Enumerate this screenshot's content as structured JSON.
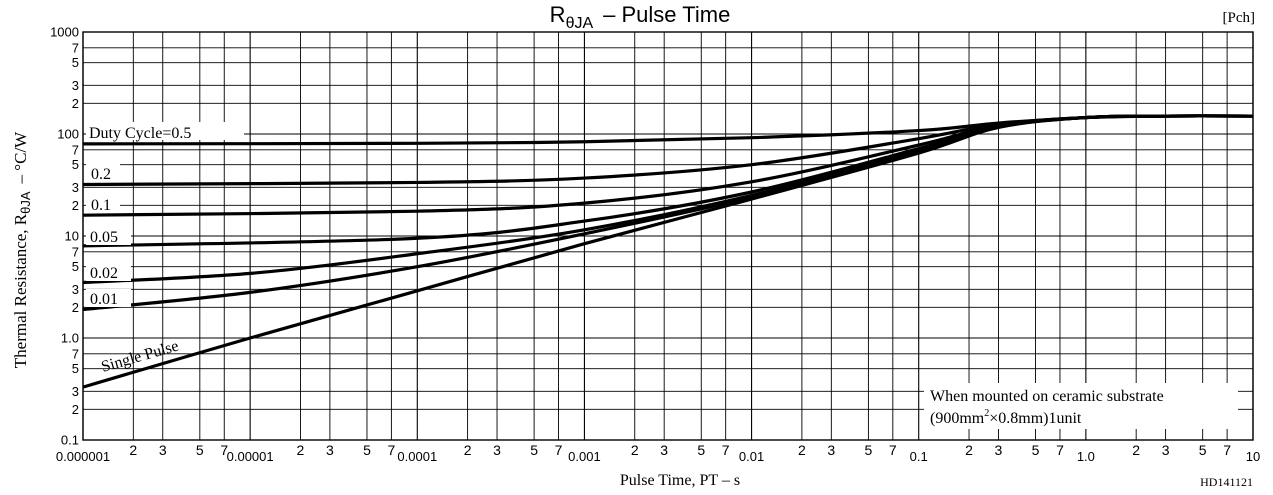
{
  "chart_data": {
    "type": "line",
    "title_main": "R",
    "title_sub": "θJA",
    "title_rest": "– Pulse Time",
    "tag": "[Pch]",
    "xlabel": "Pulse Time, PT – s",
    "ylabel_prefix": "Thermal Resistance, R",
    "ylabel_sub": "θJA",
    "ylabel_suffix": "– °C/W",
    "x_scale": "log",
    "y_scale": "log",
    "xlim": [
      1e-06,
      10
    ],
    "ylim": [
      0.1,
      1000
    ],
    "grid": true,
    "x_tick_labels": [
      {
        "v": 1e-06,
        "t": "0.000001"
      },
      {
        "v": 2e-06,
        "t": "2"
      },
      {
        "v": 3e-06,
        "t": "3"
      },
      {
        "v": 5e-06,
        "t": "5"
      },
      {
        "v": 7e-06,
        "t": "7"
      },
      {
        "v": 1e-05,
        "t": "0.00001"
      },
      {
        "v": 2e-05,
        "t": "2"
      },
      {
        "v": 3e-05,
        "t": "3"
      },
      {
        "v": 5e-05,
        "t": "5"
      },
      {
        "v": 7e-05,
        "t": "7"
      },
      {
        "v": 0.0001,
        "t": "0.0001"
      },
      {
        "v": 0.0002,
        "t": "2"
      },
      {
        "v": 0.0003,
        "t": "3"
      },
      {
        "v": 0.0005,
        "t": "5"
      },
      {
        "v": 0.0007,
        "t": "7"
      },
      {
        "v": 0.001,
        "t": "0.001"
      },
      {
        "v": 0.002,
        "t": "2"
      },
      {
        "v": 0.003,
        "t": "3"
      },
      {
        "v": 0.005,
        "t": "5"
      },
      {
        "v": 0.007,
        "t": "7"
      },
      {
        "v": 0.01,
        "t": "0.01"
      },
      {
        "v": 0.02,
        "t": "2"
      },
      {
        "v": 0.03,
        "t": "3"
      },
      {
        "v": 0.05,
        "t": "5"
      },
      {
        "v": 0.07,
        "t": "7"
      },
      {
        "v": 0.1,
        "t": "0.1"
      },
      {
        "v": 0.2,
        "t": "2"
      },
      {
        "v": 0.3,
        "t": "3"
      },
      {
        "v": 0.5,
        "t": "5"
      },
      {
        "v": 0.7,
        "t": "7"
      },
      {
        "v": 1,
        "t": "1.0"
      },
      {
        "v": 2,
        "t": "2"
      },
      {
        "v": 3,
        "t": "3"
      },
      {
        "v": 5,
        "t": "5"
      },
      {
        "v": 7,
        "t": "7"
      },
      {
        "v": 10,
        "t": "10"
      }
    ],
    "y_tick_labels": [
      {
        "v": 0.1,
        "t": "0.1"
      },
      {
        "v": 0.2,
        "t": "2"
      },
      {
        "v": 0.3,
        "t": "3"
      },
      {
        "v": 0.5,
        "t": "5"
      },
      {
        "v": 0.7,
        "t": "7"
      },
      {
        "v": 1,
        "t": "1.0"
      },
      {
        "v": 2,
        "t": "2"
      },
      {
        "v": 3,
        "t": "3"
      },
      {
        "v": 5,
        "t": "5"
      },
      {
        "v": 7,
        "t": "7"
      },
      {
        "v": 10,
        "t": "10"
      },
      {
        "v": 20,
        "t": "2"
      },
      {
        "v": 30,
        "t": "3"
      },
      {
        "v": 50,
        "t": "5"
      },
      {
        "v": 70,
        "t": "7"
      },
      {
        "v": 100,
        "t": "100"
      },
      {
        "v": 200,
        "t": "2"
      },
      {
        "v": 300,
        "t": "3"
      },
      {
        "v": 500,
        "t": "5"
      },
      {
        "v": 700,
        "t": "7"
      },
      {
        "v": 1000,
        "t": "1000"
      }
    ],
    "series": [
      {
        "name": "Duty Cycle=0.5",
        "points": [
          [
            1e-06,
            80
          ],
          [
            0.0001,
            81
          ],
          [
            0.001,
            84
          ],
          [
            0.01,
            92
          ],
          [
            0.1,
            108
          ],
          [
            0.3,
            128
          ],
          [
            1,
            145
          ],
          [
            3,
            150
          ],
          [
            10,
            150
          ]
        ]
      },
      {
        "name": "0.2",
        "points": [
          [
            1e-06,
            32
          ],
          [
            0.0001,
            33.5
          ],
          [
            0.001,
            37
          ],
          [
            0.01,
            50
          ],
          [
            0.1,
            90
          ],
          [
            0.3,
            125
          ],
          [
            1,
            145
          ],
          [
            3,
            150
          ],
          [
            10,
            150
          ]
        ]
      },
      {
        "name": "0.1",
        "points": [
          [
            1e-06,
            16
          ],
          [
            0.0001,
            17.5
          ],
          [
            0.001,
            21
          ],
          [
            0.01,
            34
          ],
          [
            0.1,
            78
          ],
          [
            0.3,
            122
          ],
          [
            1,
            145
          ],
          [
            3,
            150
          ],
          [
            10,
            150
          ]
        ]
      },
      {
        "name": "0.05",
        "points": [
          [
            1e-06,
            8
          ],
          [
            0.0001,
            9.5
          ],
          [
            0.001,
            14
          ],
          [
            0.01,
            27
          ],
          [
            0.1,
            72
          ],
          [
            0.3,
            120
          ],
          [
            1,
            145
          ],
          [
            3,
            150
          ],
          [
            10,
            150
          ]
        ]
      },
      {
        "name": "0.02",
        "points": [
          [
            1e-06,
            3.5
          ],
          [
            1e-05,
            4.3
          ],
          [
            0.0001,
            6.7
          ],
          [
            0.001,
            11.5
          ],
          [
            0.01,
            25
          ],
          [
            0.1,
            68
          ],
          [
            0.3,
            118
          ],
          [
            1,
            145
          ],
          [
            3,
            150
          ],
          [
            10,
            150
          ]
        ]
      },
      {
        "name": "0.01",
        "points": [
          [
            1e-06,
            1.9
          ],
          [
            1e-05,
            2.8
          ],
          [
            0.0001,
            5
          ],
          [
            0.001,
            10.5
          ],
          [
            0.01,
            24
          ],
          [
            0.1,
            66
          ],
          [
            0.3,
            117
          ],
          [
            1,
            145
          ],
          [
            3,
            150
          ],
          [
            10,
            150
          ]
        ]
      },
      {
        "name": "Single Pulse",
        "points": [
          [
            1e-06,
            0.33
          ],
          [
            1e-05,
            1
          ],
          [
            0.0001,
            2.9
          ],
          [
            0.001,
            8.4
          ],
          [
            0.01,
            23
          ],
          [
            0.1,
            65
          ],
          [
            0.3,
            116
          ],
          [
            1,
            145
          ],
          [
            3,
            150
          ],
          [
            10,
            150
          ]
        ]
      }
    ],
    "annotation_line1": "When mounted on ceramic substrate",
    "annotation_line2_a": "(900mm",
    "annotation_line2_sup": "2",
    "annotation_line2_b": "×0.8mm)1unit",
    "figure_code": "HD141121"
  }
}
